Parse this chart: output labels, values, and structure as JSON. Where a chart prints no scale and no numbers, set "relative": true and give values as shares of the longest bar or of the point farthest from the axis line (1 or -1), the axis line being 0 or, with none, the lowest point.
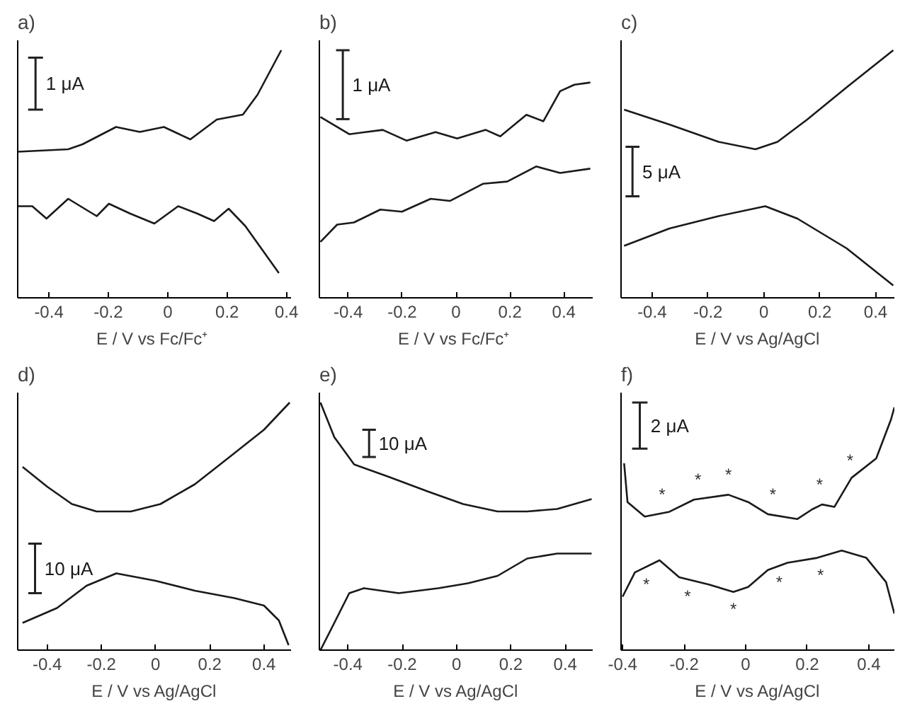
{
  "chart_data": [
    {
      "type": "line",
      "title": "a)",
      "xlabel": "E / V vs  Fc/Fc⁺",
      "relative": true,
      "xlim": [
        -0.505,
        0.415
      ],
      "xticks": [
        -0.4,
        -0.2,
        0,
        0.2,
        0.4
      ],
      "grid": false,
      "annotations": [
        "1 μA"
      ],
      "series": [
        {
          "color": "#1a1a1a",
          "x": [
            -0.505,
            -0.335,
            -0.287,
            -0.174,
            -0.094,
            -0.013,
            0.076,
            0.165,
            0.253,
            0.302,
            0.382
          ],
          "values": [
            0.59,
            0.6,
            0.62,
            0.69,
            0.67,
            0.69,
            0.64,
            0.72,
            0.74,
            0.82,
            1.0
          ]
        },
        {
          "color": "#1a1a1a",
          "x": [
            -0.505,
            -0.456,
            -0.408,
            -0.335,
            -0.239,
            -0.198,
            -0.126,
            -0.045,
            0.035,
            0.1,
            0.156,
            0.205,
            0.261,
            0.374
          ],
          "values": [
            0.37,
            0.37,
            0.32,
            0.4,
            0.33,
            0.38,
            0.34,
            0.3,
            0.37,
            0.34,
            0.31,
            0.36,
            0.29,
            0.1
          ]
        }
      ]
    },
    {
      "type": "line",
      "title": "b)",
      "xlabel": "E / V vs  Fc/Fc⁺",
      "relative": true,
      "xlim": [
        -0.507,
        0.507
      ],
      "xticks": [
        -0.4,
        -0.2,
        0,
        0.2,
        0.4
      ],
      "grid": false,
      "annotations": [
        "1 μA"
      ],
      "series": [
        {
          "color": "#1a1a1a",
          "x": [
            -0.503,
            -0.396,
            -0.272,
            -0.183,
            -0.076,
            0.004,
            0.11,
            0.164,
            0.261,
            0.324,
            0.386,
            0.439,
            0.498
          ],
          "values": [
            0.84,
            0.76,
            0.78,
            0.73,
            0.77,
            0.74,
            0.78,
            0.75,
            0.85,
            0.82,
            0.96,
            0.99,
            1.0
          ]
        },
        {
          "color": "#1a1a1a",
          "x": [
            -0.503,
            -0.441,
            -0.379,
            -0.281,
            -0.201,
            -0.094,
            -0.023,
            0.101,
            0.19,
            0.297,
            0.386,
            0.498
          ],
          "values": [
            0.26,
            0.34,
            0.35,
            0.41,
            0.4,
            0.46,
            0.45,
            0.53,
            0.54,
            0.61,
            0.58,
            0.6
          ]
        }
      ]
    },
    {
      "type": "line",
      "title": "c)",
      "xlabel": "E / V vs Ag/AgCl",
      "relative": true,
      "xlim": [
        -0.511,
        0.467
      ],
      "xticks": [
        -0.4,
        -0.2,
        0,
        0.2,
        0.4
      ],
      "grid": false,
      "annotations": [
        "5 μA"
      ],
      "series": [
        {
          "color": "#1a1a1a",
          "x": [
            -0.5,
            -0.338,
            -0.162,
            -0.03,
            0.049,
            0.155,
            0.296,
            0.463
          ],
          "values": [
            0.76,
            0.7,
            0.63,
            0.6,
            0.63,
            0.72,
            0.85,
            1.0
          ]
        },
        {
          "color": "#1a1a1a",
          "x": [
            -0.5,
            -0.338,
            -0.162,
            0.005,
            0.12,
            0.296,
            0.463
          ],
          "values": [
            0.21,
            0.28,
            0.33,
            0.37,
            0.32,
            0.2,
            0.05
          ]
        }
      ]
    },
    {
      "type": "line",
      "title": "d)",
      "xlabel": "E / V vs Ag/AgCl",
      "relative": true,
      "xlim": [
        -0.509,
        0.5
      ],
      "xticks": [
        -0.4,
        -0.2,
        0,
        0.2,
        0.4
      ],
      "grid": false,
      "annotations": [
        "10 μA"
      ],
      "series": [
        {
          "color": "#1a1a1a",
          "x": [
            -0.491,
            -0.4,
            -0.309,
            -0.218,
            -0.091,
            0.018,
            0.145,
            0.273,
            0.4,
            0.495
          ],
          "values": [
            0.74,
            0.66,
            0.59,
            0.56,
            0.56,
            0.59,
            0.67,
            0.78,
            0.89,
            1.0
          ]
        },
        {
          "color": "#1a1a1a",
          "x": [
            -0.491,
            -0.364,
            -0.255,
            -0.145,
            0,
            0.145,
            0.291,
            0.4,
            0.455,
            0.491
          ],
          "values": [
            0.11,
            0.17,
            0.26,
            0.31,
            0.28,
            0.24,
            0.21,
            0.18,
            0.12,
            0.02
          ]
        }
      ]
    },
    {
      "type": "line",
      "title": "e)",
      "xlabel": "E / V vs Ag/AgCl",
      "relative": true,
      "xlim": [
        -0.505,
        0.501
      ],
      "xticks": [
        -0.4,
        -0.2,
        0,
        0.2,
        0.4
      ],
      "grid": false,
      "annotations": [
        "10 μA"
      ],
      "series": [
        {
          "color": "#1a1a1a",
          "x": [
            -0.501,
            -0.45,
            -0.377,
            -0.25,
            -0.104,
            0.024,
            0.151,
            0.26,
            0.37,
            0.497
          ],
          "values": [
            1.0,
            0.86,
            0.75,
            0.7,
            0.64,
            0.59,
            0.56,
            0.56,
            0.57,
            0.61
          ]
        },
        {
          "color": "#1a1a1a",
          "x": [
            -0.501,
            -0.45,
            -0.395,
            -0.341,
            -0.213,
            -0.067,
            0.042,
            0.151,
            0.26,
            0.37,
            0.497
          ],
          "values": [
            0,
            0.11,
            0.23,
            0.25,
            0.23,
            0.25,
            0.27,
            0.3,
            0.37,
            0.39,
            0.39
          ]
        }
      ]
    },
    {
      "type": "line",
      "title": "f)",
      "xlabel": "E / V vs Ag/AgCl",
      "relative": true,
      "xlim": [
        -0.405,
        0.483
      ],
      "xticks": [
        -0.4,
        -0.2,
        0,
        0.2,
        0.4
      ],
      "grid": false,
      "annotations": [
        "2 μA",
        {
          "text": "*",
          "x": -0.272,
          "y": 0.56
        },
        {
          "text": "*",
          "x": -0.155,
          "y": 0.62
        },
        {
          "text": "*",
          "x": -0.056,
          "y": 0.64
        },
        {
          "text": "*",
          "x": 0.088,
          "y": 0.56
        },
        {
          "text": "*",
          "x": 0.24,
          "y": 0.6
        },
        {
          "text": "*",
          "x": 0.339,
          "y": 0.7
        },
        {
          "text": "*",
          "x": -0.323,
          "y": 0.34
        },
        {
          "text": "*",
          "x": -0.189,
          "y": 0.29
        },
        {
          "text": "*",
          "x": -0.04,
          "y": 0.24
        },
        {
          "text": "*",
          "x": 0.109,
          "y": 0.35
        },
        {
          "text": "*",
          "x": 0.243,
          "y": 0.38
        }
      ],
      "series": [
        {
          "color": "#1a1a1a",
          "x": [
            -0.395,
            -0.384,
            -0.328,
            -0.248,
            -0.168,
            -0.056,
            0.008,
            0.072,
            0.168,
            0.216,
            0.248,
            0.288,
            0.344,
            0.424,
            0.472,
            0.483
          ],
          "values": [
            0.77,
            0.61,
            0.55,
            0.57,
            0.62,
            0.64,
            0.61,
            0.56,
            0.54,
            0.58,
            0.6,
            0.59,
            0.71,
            0.79,
            0.95,
            1.0
          ]
        },
        {
          "color": "#1a1a1a",
          "x": [
            -0.4,
            -0.36,
            -0.28,
            -0.216,
            -0.12,
            -0.04,
            0.008,
            0.072,
            0.136,
            0.232,
            0.312,
            0.392,
            0.456,
            0.483
          ],
          "values": [
            0.22,
            0.32,
            0.37,
            0.3,
            0.27,
            0.24,
            0.26,
            0.33,
            0.36,
            0.38,
            0.41,
            0.38,
            0.28,
            0.15
          ]
        }
      ]
    }
  ]
}
